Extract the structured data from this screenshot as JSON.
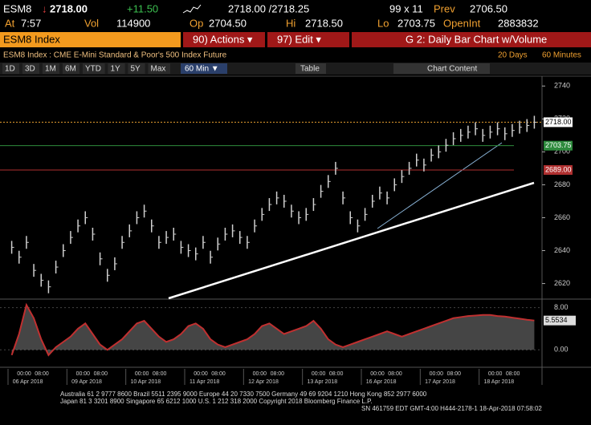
{
  "quote": {
    "ticker": "ESM8",
    "arrow": "↓",
    "last": "2718.00",
    "change": "+11.50",
    "bid_ask": "2718.00 /2718.25",
    "size": "99 x 11",
    "prev_label": "Prev",
    "prev": "2706.50",
    "at_label": "At",
    "time": "7:57",
    "vol_label": "Vol",
    "vol": "114900",
    "op_label": "Op",
    "open": "2704.50",
    "hi_label": "Hi",
    "high": "2718.50",
    "lo_label": "Lo",
    "low": "2703.75",
    "oi_label": "OpenInt",
    "open_int": "2883832"
  },
  "menu": {
    "security": "ESM8 Index",
    "actions": "90) Actions ▾",
    "edit": "97) Edit ▾",
    "title": "G 2: Daily Bar Chart w/Volume"
  },
  "description": "ESM8 Index : CME E-Mini Standard & Poor's 500 Index Future",
  "range": {
    "days": "20 Days",
    "interval": "60 Minutes"
  },
  "toolbar": {
    "periods": [
      "1D",
      "3D",
      "1M",
      "6M",
      "YTD",
      "1Y",
      "5Y",
      "Max"
    ],
    "interval": "60 Min ▼",
    "table": "Table",
    "chart_content": "Chart Content"
  },
  "chart_data": {
    "type": "price-bar",
    "color": "#cfcfcf",
    "days": [
      "06 Apr 2018",
      "09 Apr 2018",
      "10 Apr 2018",
      "11 Apr 2018",
      "12 Apr 2018",
      "13 Apr 2018",
      "16 Apr 2018",
      "17 Apr 2018",
      "18 Apr 2018"
    ],
    "hour_labels": [
      "00:00",
      "08:00"
    ],
    "values": [
      2642,
      2636,
      2645,
      2628,
      2622,
      2618,
      2630,
      2640,
      2648,
      2655,
      2660,
      2650,
      2635,
      2625,
      2632,
      2645,
      2652,
      2660,
      2664,
      2655,
      2645,
      2648,
      2650,
      2642,
      2640,
      2638,
      2645,
      2636,
      2644,
      2650,
      2652,
      2648,
      2645,
      2655,
      2662,
      2668,
      2672,
      2670,
      2664,
      2660,
      2662,
      2668,
      2676,
      2682,
      2690,
      2672,
      2660,
      2655,
      2662,
      2670,
      2675,
      2672,
      2680,
      2685,
      2690,
      2695,
      2692,
      2698,
      2700,
      2704,
      2708,
      2710,
      2712,
      2714,
      2710,
      2712,
      2714,
      2711,
      2713,
      2715,
      2716,
      2718
    ],
    "ylim": [
      2612,
      2745
    ],
    "yticks": [
      2620,
      2640,
      2660,
      2680,
      2700,
      2720,
      2740
    ],
    "price_tags": [
      {
        "value": 2718,
        "label": "2718.00",
        "color": "#ffffff"
      },
      {
        "value": 2703.75,
        "label": "2703.75",
        "color": "#2e8b3d"
      },
      {
        "value": 2689,
        "label": "2689.00",
        "color": "#b03030"
      }
    ],
    "indicator": {
      "type": "area",
      "color": "#c03030",
      "values": [
        -1,
        3,
        8.5,
        6,
        2,
        -1,
        0.5,
        1.5,
        2.5,
        4,
        5,
        3,
        1,
        0,
        1,
        2,
        3.5,
        5,
        5.5,
        4,
        2.5,
        1.5,
        2,
        3,
        4.5,
        5,
        4,
        2,
        1,
        0.5,
        1,
        1.5,
        2,
        3,
        4.5,
        5,
        4,
        3,
        3.5,
        4,
        4.5,
        5.5,
        4,
        2,
        1,
        0.5,
        1,
        1.5,
        2,
        2.5,
        3,
        3.5,
        3,
        2.5,
        3,
        3.5,
        4,
        4.5,
        5,
        5.5,
        6,
        6.2,
        6.4,
        6.5,
        6.6,
        6.6,
        6.4,
        6.3,
        6.1,
        5.9,
        5.7,
        5.5534
      ],
      "ylim": [
        -3,
        9
      ],
      "yticks": [
        {
          "value": 8,
          "label": "8.00"
        },
        {
          "value": 0,
          "label": "0.00"
        }
      ]
    }
  },
  "footer": [
    "Australia 61 2 9777 8600 Brazil 5511 2395 9000 Europe 44 20 7330 7500 Germany 49 69 9204 1210 Hong Kong 852 2977 6000",
    "Japan 81 3 3201 8900          Singapore 65 6212 1000          U.S. 1 212 318 2000          Copyright 2018 Bloomberg Finance L.P.",
    "SN 461759 EDT  GMT-4:00 H444-2178-1 18-Apr-2018 07:58:02"
  ]
}
